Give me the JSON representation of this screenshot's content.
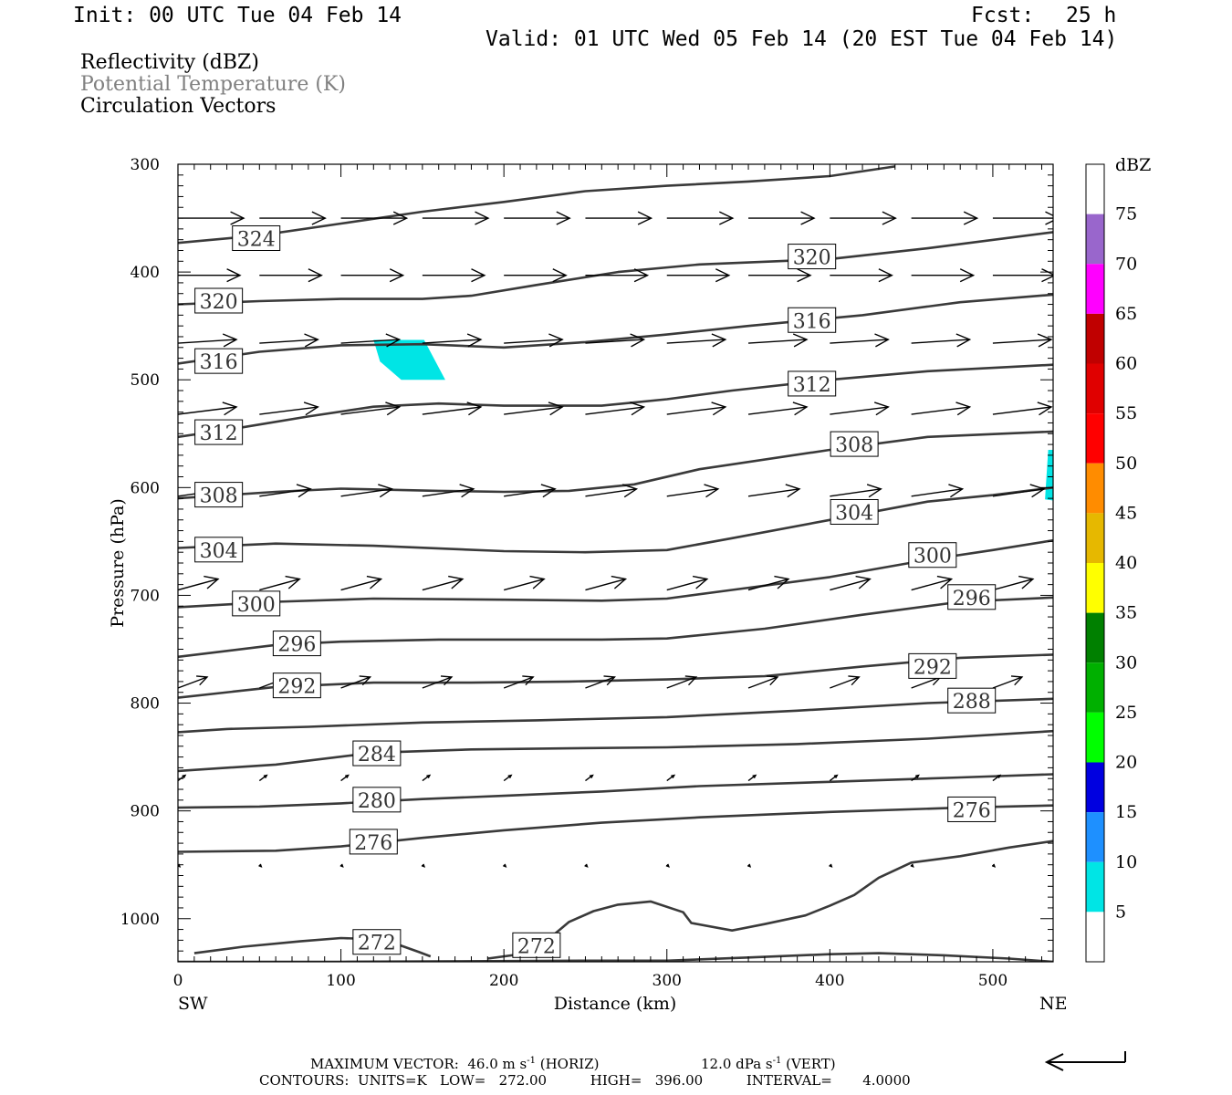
{
  "header": {
    "init": "Init: 00 UTC Tue 04 Feb 14",
    "fcst_label": "Fcst:",
    "fcst_value": "25 h",
    "valid": "Valid: 01 UTC Wed 05 Feb 14 (20 EST Tue 04 Feb 14)",
    "field1": "Reflectivity (dBZ)",
    "field2": "Potential Temperature (K)",
    "field3": "Circulation Vectors"
  },
  "colors": {
    "contour": "#3a3a3a",
    "field2_text": "#808080",
    "reflectivity_fill": "#00e5e5"
  },
  "chart_data": {
    "type": "cross-section",
    "xlabel": "Distance (km)",
    "ylabel": "Pressure (hPa)",
    "xlim": [
      0,
      537
    ],
    "ylim": [
      300,
      1040
    ],
    "y_scale": "linear, reversed",
    "x_ticks": [
      "0",
      "100",
      "200",
      "300",
      "400",
      "500"
    ],
    "y_ticks": [
      "300",
      "400",
      "500",
      "600",
      "700",
      "800",
      "900",
      "1000"
    ],
    "left_end_label": "SW",
    "right_end_label": "NE",
    "colorbar": {
      "unit": "dBZ",
      "labels": [
        "75",
        "70",
        "65",
        "60",
        "55",
        "50",
        "45",
        "40",
        "35",
        "30",
        "25",
        "20",
        "15",
        "10",
        "5"
      ],
      "colors": [
        "#ffffff",
        "#9966cc",
        "#ff00ff",
        "#c00000",
        "#e00000",
        "#ff0000",
        "#ff8c00",
        "#e6b800",
        "#ffff00",
        "#008000",
        "#00b000",
        "#00ff00",
        "#0000e0",
        "#1e90ff",
        "#00e5e5",
        "#ffffff"
      ]
    },
    "theta_contours": [
      {
        "label": "324",
        "points": [
          [
            0,
            373
          ],
          [
            50,
            366
          ],
          [
            100,
            355
          ],
          [
            150,
            344
          ],
          [
            200,
            335
          ],
          [
            250,
            325
          ],
          [
            300,
            320
          ],
          [
            350,
            316
          ],
          [
            400,
            311
          ],
          [
            440,
            302
          ]
        ],
        "label_at": [
          48,
          369
        ]
      },
      {
        "label": "320",
        "points": [
          [
            0,
            430
          ],
          [
            50,
            427
          ],
          [
            100,
            425
          ],
          [
            150,
            425
          ],
          [
            180,
            422
          ],
          [
            220,
            412
          ],
          [
            270,
            400
          ],
          [
            320,
            393
          ],
          [
            400,
            388
          ],
          [
            460,
            378
          ],
          [
            537,
            363
          ]
        ],
        "label_at": [
          25,
          427
        ],
        "label2": "320",
        "label2_at": [
          389,
          386
        ]
      },
      {
        "label": "316",
        "points": [
          [
            0,
            485
          ],
          [
            50,
            474
          ],
          [
            100,
            468
          ],
          [
            150,
            467
          ],
          [
            200,
            470
          ],
          [
            250,
            465
          ],
          [
            300,
            458
          ],
          [
            350,
            450
          ],
          [
            420,
            440
          ],
          [
            480,
            428
          ],
          [
            537,
            421
          ]
        ],
        "label_at": [
          25,
          483
        ],
        "label2": "316",
        "label2_at": [
          389,
          445
        ]
      },
      {
        "label": "312",
        "points": [
          [
            0,
            553
          ],
          [
            40,
            544
          ],
          [
            80,
            534
          ],
          [
            120,
            525
          ],
          [
            160,
            522
          ],
          [
            200,
            524
          ],
          [
            260,
            524
          ],
          [
            300,
            518
          ],
          [
            340,
            510
          ],
          [
            400,
            500
          ],
          [
            460,
            492
          ],
          [
            537,
            486
          ]
        ],
        "label_at": [
          25,
          549
        ],
        "label2": "312",
        "label2_at": [
          389,
          504
        ]
      },
      {
        "label": "308",
        "points": [
          [
            0,
            610
          ],
          [
            60,
            604
          ],
          [
            100,
            601
          ],
          [
            160,
            603
          ],
          [
            200,
            604
          ],
          [
            240,
            603
          ],
          [
            280,
            597
          ],
          [
            320,
            583
          ],
          [
            400,
            565
          ],
          [
            460,
            553
          ],
          [
            537,
            548
          ]
        ],
        "label_at": [
          25,
          607
        ],
        "label2": "308",
        "label2_at": [
          415,
          560
        ]
      },
      {
        "label": "304",
        "points": [
          [
            0,
            656
          ],
          [
            60,
            652
          ],
          [
            120,
            654
          ],
          [
            200,
            659
          ],
          [
            250,
            660
          ],
          [
            300,
            658
          ],
          [
            340,
            647
          ],
          [
            400,
            630
          ],
          [
            460,
            613
          ],
          [
            500,
            607
          ],
          [
            537,
            600
          ]
        ],
        "label_at": [
          25,
          658
        ],
        "label2": "304",
        "label2_at": [
          415,
          623
        ]
      },
      {
        "label": "300",
        "points": [
          [
            0,
            711
          ],
          [
            60,
            706
          ],
          [
            120,
            703
          ],
          [
            200,
            704
          ],
          [
            260,
            705
          ],
          [
            300,
            703
          ],
          [
            340,
            695
          ],
          [
            400,
            683
          ],
          [
            460,
            667
          ],
          [
            500,
            658
          ],
          [
            537,
            649
          ]
        ],
        "label_at": [
          48,
          708
        ],
        "label2": "300",
        "label2_at": [
          463,
          663
        ]
      },
      {
        "label": "296",
        "points": [
          [
            0,
            757
          ],
          [
            60,
            746
          ],
          [
            100,
            743
          ],
          [
            160,
            741
          ],
          [
            200,
            741
          ],
          [
            260,
            741
          ],
          [
            300,
            740
          ],
          [
            360,
            731
          ],
          [
            420,
            718
          ],
          [
            480,
            706
          ],
          [
            537,
            702
          ]
        ],
        "label_at": [
          73,
          745
        ],
        "label2": "296",
        "label2_at": [
          487,
          702
        ]
      },
      {
        "label": "292",
        "points": [
          [
            0,
            795
          ],
          [
            60,
            785
          ],
          [
            120,
            781
          ],
          [
            180,
            781
          ],
          [
            240,
            780
          ],
          [
            300,
            778
          ],
          [
            360,
            775
          ],
          [
            420,
            766
          ],
          [
            480,
            758
          ],
          [
            537,
            755
          ]
        ],
        "label_at": [
          73,
          784
        ],
        "label2": "292",
        "label2_at": [
          463,
          766
        ]
      },
      {
        "label": "288",
        "points": [
          [
            0,
            827
          ],
          [
            30,
            824
          ],
          [
            80,
            822
          ],
          [
            150,
            818
          ],
          [
            220,
            816
          ],
          [
            300,
            813
          ],
          [
            380,
            807
          ],
          [
            460,
            800
          ],
          [
            537,
            796
          ]
        ],
        "label_at": null,
        "label2": "288",
        "label2_at": [
          487,
          798
        ]
      },
      {
        "label": "284",
        "points": [
          [
            0,
            863
          ],
          [
            60,
            857
          ],
          [
            120,
            846
          ],
          [
            180,
            843
          ],
          [
            240,
            842
          ],
          [
            300,
            841
          ],
          [
            380,
            838
          ],
          [
            460,
            833
          ],
          [
            537,
            826
          ]
        ],
        "label_at": [
          122,
          847
        ]
      },
      {
        "label": "280",
        "points": [
          [
            0,
            897
          ],
          [
            50,
            896
          ],
          [
            100,
            893
          ],
          [
            150,
            889
          ],
          [
            200,
            886
          ],
          [
            260,
            882
          ],
          [
            320,
            877
          ],
          [
            400,
            873
          ],
          [
            480,
            869
          ],
          [
            537,
            866
          ]
        ],
        "label_at": [
          122,
          890
        ]
      },
      {
        "label": "276",
        "points": [
          [
            0,
            938
          ],
          [
            60,
            937
          ],
          [
            100,
            933
          ],
          [
            150,
            925
          ],
          [
            200,
            918
          ],
          [
            260,
            911
          ],
          [
            320,
            906
          ],
          [
            400,
            901
          ],
          [
            480,
            897
          ],
          [
            537,
            895
          ]
        ],
        "label_at": [
          120,
          929
        ],
        "label2": "276",
        "label2_at": [
          487,
          899
        ]
      },
      {
        "label": "272",
        "points": [
          [
            10,
            1032
          ],
          [
            40,
            1026
          ],
          [
            75,
            1021
          ],
          [
            100,
            1018
          ],
          [
            120,
            1019
          ],
          [
            135,
            1024
          ],
          [
            148,
            1031
          ],
          [
            155,
            1035
          ]
        ],
        "label_at": [
          122,
          1022
        ]
      },
      {
        "label": "272",
        "points": [
          [
            190,
            1037
          ],
          [
            210,
            1033
          ],
          [
            225,
            1022
          ],
          [
            240,
            1003
          ],
          [
            255,
            993
          ],
          [
            270,
            987
          ],
          [
            290,
            984
          ],
          [
            310,
            994
          ],
          [
            315,
            1004
          ],
          [
            340,
            1011
          ],
          [
            360,
            1005
          ],
          [
            385,
            997
          ],
          [
            400,
            988
          ],
          [
            415,
            978
          ],
          [
            430,
            962
          ],
          [
            450,
            948
          ],
          [
            480,
            942
          ],
          [
            510,
            934
          ],
          [
            537,
            928
          ]
        ],
        "label_at": [
          220,
          1025
        ]
      },
      {
        "label": "",
        "points": [
          [
            0,
            1040
          ],
          [
            100,
            1040
          ],
          [
            250,
            1039
          ],
          [
            300,
            1039
          ],
          [
            350,
            1036
          ],
          [
            400,
            1033
          ],
          [
            430,
            1032
          ],
          [
            470,
            1034
          ],
          [
            510,
            1037
          ],
          [
            537,
            1040
          ]
        ],
        "label_at": null
      }
    ],
    "reflectivity_patches": [
      {
        "dbz": 5,
        "points": [
          [
            120,
            463
          ],
          [
            151,
            463
          ],
          [
            164,
            500
          ],
          [
            150,
            500
          ],
          [
            137,
            500
          ],
          [
            124,
            483
          ]
        ]
      },
      {
        "dbz": 5,
        "points": [
          [
            534,
            565
          ],
          [
            537,
            565
          ],
          [
            537,
            612
          ],
          [
            532,
            611
          ]
        ]
      }
    ],
    "vectors_rows": [
      {
        "p": 350,
        "u": 36,
        "w": 0
      },
      {
        "p": 403,
        "u": 34,
        "w": 0
      },
      {
        "p": 466,
        "u": 32,
        "w": -2
      },
      {
        "p": 532,
        "u": 32,
        "w": -4
      },
      {
        "p": 608,
        "u": 28,
        "w": -4
      },
      {
        "p": 695,
        "u": 22,
        "w": -6
      },
      {
        "p": 786,
        "u": 16,
        "w": -6
      },
      {
        "p": 872,
        "u": 4,
        "w": -3
      },
      {
        "p": 950,
        "u": 1,
        "w": 1
      }
    ],
    "vector_x": [
      0,
      50,
      100,
      150,
      200,
      250,
      300,
      350,
      400,
      450,
      500
    ]
  },
  "footer": {
    "line1a": "MAXIMUM VECTOR:  46.0 m s",
    "line1a_sup": "-1",
    "line1b": " (HORIZ)",
    "line1c": "12.0 dPa s",
    "line1c_sup": "-1",
    "line1d": " (VERT)",
    "line2": "CONTOURS:  UNITS=K   LOW=   272.00          HIGH=   396.00          INTERVAL=       4.0000"
  }
}
